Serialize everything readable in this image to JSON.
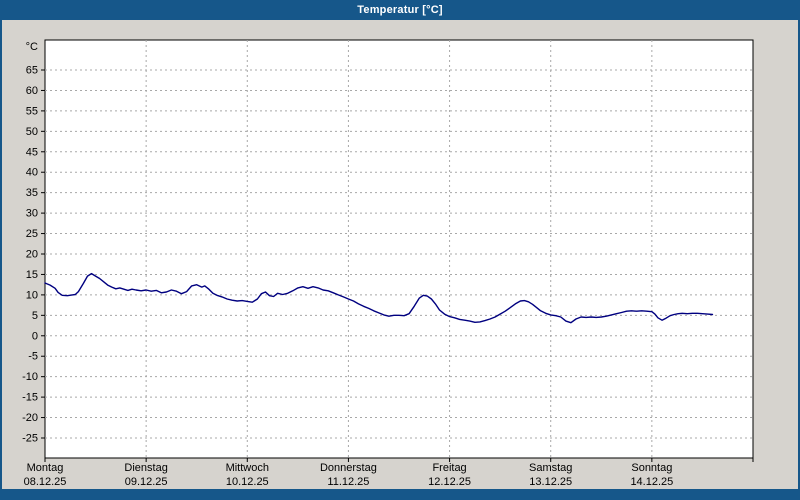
{
  "window": {
    "title": "Temperatur [°C]"
  },
  "colors": {
    "titlebar": "#16578a",
    "title_text": "#ffffff",
    "background": "#d6d3ce",
    "plot_bg": "#ffffff",
    "plot_border": "#000000",
    "grid": "#a8a8a8",
    "axis_text": "#000000",
    "line": "#000080"
  },
  "chart_data": {
    "type": "line",
    "title": "Temperatur [°C]",
    "xlabel": "",
    "ylabel": "°C",
    "ylim": [
      -30,
      72
    ],
    "xlim": [
      0,
      7
    ],
    "y_ticks": [
      65,
      60,
      55,
      50,
      45,
      40,
      35,
      30,
      25,
      20,
      15,
      10,
      5,
      0,
      -5,
      -10,
      -15,
      -20,
      -25
    ],
    "grid": "dashed",
    "legend_position": "none",
    "x_days": [
      {
        "name": "Montag",
        "date": "08.12.25"
      },
      {
        "name": "Dienstag",
        "date": "09.12.25"
      },
      {
        "name": "Mittwoch",
        "date": "10.12.25"
      },
      {
        "name": "Donnerstag",
        "date": "11.12.25"
      },
      {
        "name": "Freitag",
        "date": "12.12.25"
      },
      {
        "name": "Samstag",
        "date": "13.12.25"
      },
      {
        "name": "Sonntag",
        "date": "14.12.25"
      }
    ],
    "series": [
      {
        "name": "Temperatur",
        "unit": "°C",
        "points": [
          [
            0,
            12.9
          ],
          [
            0.05,
            12.4
          ],
          [
            0.1,
            11.6
          ],
          [
            0.13,
            10.6
          ],
          [
            0.17,
            9.9
          ],
          [
            0.22,
            9.8
          ],
          [
            0.27,
            10
          ],
          [
            0.3,
            10.1
          ],
          [
            0.33,
            10.8
          ],
          [
            0.38,
            12.8
          ],
          [
            0.42,
            14.6
          ],
          [
            0.46,
            15.2
          ],
          [
            0.5,
            14.6
          ],
          [
            0.54,
            14
          ],
          [
            0.58,
            13.2
          ],
          [
            0.62,
            12.4
          ],
          [
            0.66,
            11.9
          ],
          [
            0.7,
            11.5
          ],
          [
            0.74,
            11.7
          ],
          [
            0.78,
            11.4
          ],
          [
            0.82,
            11.1
          ],
          [
            0.86,
            11.4
          ],
          [
            0.9,
            11.2
          ],
          [
            0.95,
            11
          ],
          [
            1,
            11.2
          ],
          [
            1.05,
            10.9
          ],
          [
            1.1,
            11.1
          ],
          [
            1.15,
            10.5
          ],
          [
            1.2,
            10.7
          ],
          [
            1.25,
            11.2
          ],
          [
            1.3,
            10.9
          ],
          [
            1.35,
            10.3
          ],
          [
            1.4,
            10.8
          ],
          [
            1.45,
            12.2
          ],
          [
            1.5,
            12.5
          ],
          [
            1.55,
            11.9
          ],
          [
            1.58,
            12.2
          ],
          [
            1.62,
            11.4
          ],
          [
            1.66,
            10.4
          ],
          [
            1.7,
            9.9
          ],
          [
            1.75,
            9.5
          ],
          [
            1.8,
            9
          ],
          [
            1.85,
            8.7
          ],
          [
            1.9,
            8.5
          ],
          [
            1.95,
            8.6
          ],
          [
            2,
            8.4
          ],
          [
            2.05,
            8.2
          ],
          [
            2.1,
            9
          ],
          [
            2.14,
            10.3
          ],
          [
            2.18,
            10.7
          ],
          [
            2.22,
            9.8
          ],
          [
            2.26,
            9.6
          ],
          [
            2.3,
            10.4
          ],
          [
            2.35,
            10.1
          ],
          [
            2.4,
            10.4
          ],
          [
            2.45,
            11
          ],
          [
            2.5,
            11.7
          ],
          [
            2.55,
            12
          ],
          [
            2.6,
            11.6
          ],
          [
            2.65,
            12
          ],
          [
            2.7,
            11.7
          ],
          [
            2.75,
            11.2
          ],
          [
            2.8,
            11
          ],
          [
            2.85,
            10.5
          ],
          [
            2.9,
            10
          ],
          [
            2.95,
            9.5
          ],
          [
            3,
            9
          ],
          [
            3.05,
            8.5
          ],
          [
            3.1,
            7.8
          ],
          [
            3.15,
            7.2
          ],
          [
            3.2,
            6.7
          ],
          [
            3.25,
            6.1
          ],
          [
            3.3,
            5.6
          ],
          [
            3.35,
            5.1
          ],
          [
            3.4,
            4.8
          ],
          [
            3.45,
            5
          ],
          [
            3.5,
            5
          ],
          [
            3.55,
            4.9
          ],
          [
            3.6,
            5.4
          ],
          [
            3.65,
            7.2
          ],
          [
            3.7,
            9.2
          ],
          [
            3.74,
            9.9
          ],
          [
            3.78,
            9.7
          ],
          [
            3.82,
            9
          ],
          [
            3.86,
            7.8
          ],
          [
            3.9,
            6.3
          ],
          [
            3.95,
            5.3
          ],
          [
            4,
            4.7
          ],
          [
            4.05,
            4.4
          ],
          [
            4.1,
            4
          ],
          [
            4.15,
            3.8
          ],
          [
            4.2,
            3.6
          ],
          [
            4.25,
            3.3
          ],
          [
            4.3,
            3.4
          ],
          [
            4.35,
            3.7
          ],
          [
            4.4,
            4.1
          ],
          [
            4.45,
            4.6
          ],
          [
            4.5,
            5.3
          ],
          [
            4.55,
            6
          ],
          [
            4.6,
            6.9
          ],
          [
            4.65,
            7.8
          ],
          [
            4.7,
            8.5
          ],
          [
            4.74,
            8.6
          ],
          [
            4.78,
            8.3
          ],
          [
            4.82,
            7.7
          ],
          [
            4.86,
            6.9
          ],
          [
            4.9,
            6.1
          ],
          [
            4.95,
            5.5
          ],
          [
            5,
            5.1
          ],
          [
            5.05,
            4.9
          ],
          [
            5.1,
            4.6
          ],
          [
            5.15,
            3.6
          ],
          [
            5.2,
            3.2
          ],
          [
            5.25,
            4.1
          ],
          [
            5.3,
            4.6
          ],
          [
            5.35,
            4.5
          ],
          [
            5.4,
            4.6
          ],
          [
            5.45,
            4.5
          ],
          [
            5.5,
            4.6
          ],
          [
            5.55,
            4.8
          ],
          [
            5.6,
            5.1
          ],
          [
            5.65,
            5.4
          ],
          [
            5.7,
            5.7
          ],
          [
            5.75,
            6
          ],
          [
            5.8,
            6.1
          ],
          [
            5.85,
            6
          ],
          [
            5.9,
            6.1
          ],
          [
            5.95,
            6
          ],
          [
            6,
            5.9
          ],
          [
            6.03,
            5.3
          ],
          [
            6.06,
            4.4
          ],
          [
            6.1,
            3.8
          ],
          [
            6.14,
            4.3
          ],
          [
            6.18,
            4.9
          ],
          [
            6.22,
            5.2
          ],
          [
            6.26,
            5.4
          ],
          [
            6.3,
            5.5
          ],
          [
            6.35,
            5.4
          ],
          [
            6.4,
            5.5
          ],
          [
            6.45,
            5.5
          ],
          [
            6.5,
            5.4
          ],
          [
            6.55,
            5.3
          ],
          [
            6.6,
            5.2
          ]
        ]
      }
    ]
  }
}
